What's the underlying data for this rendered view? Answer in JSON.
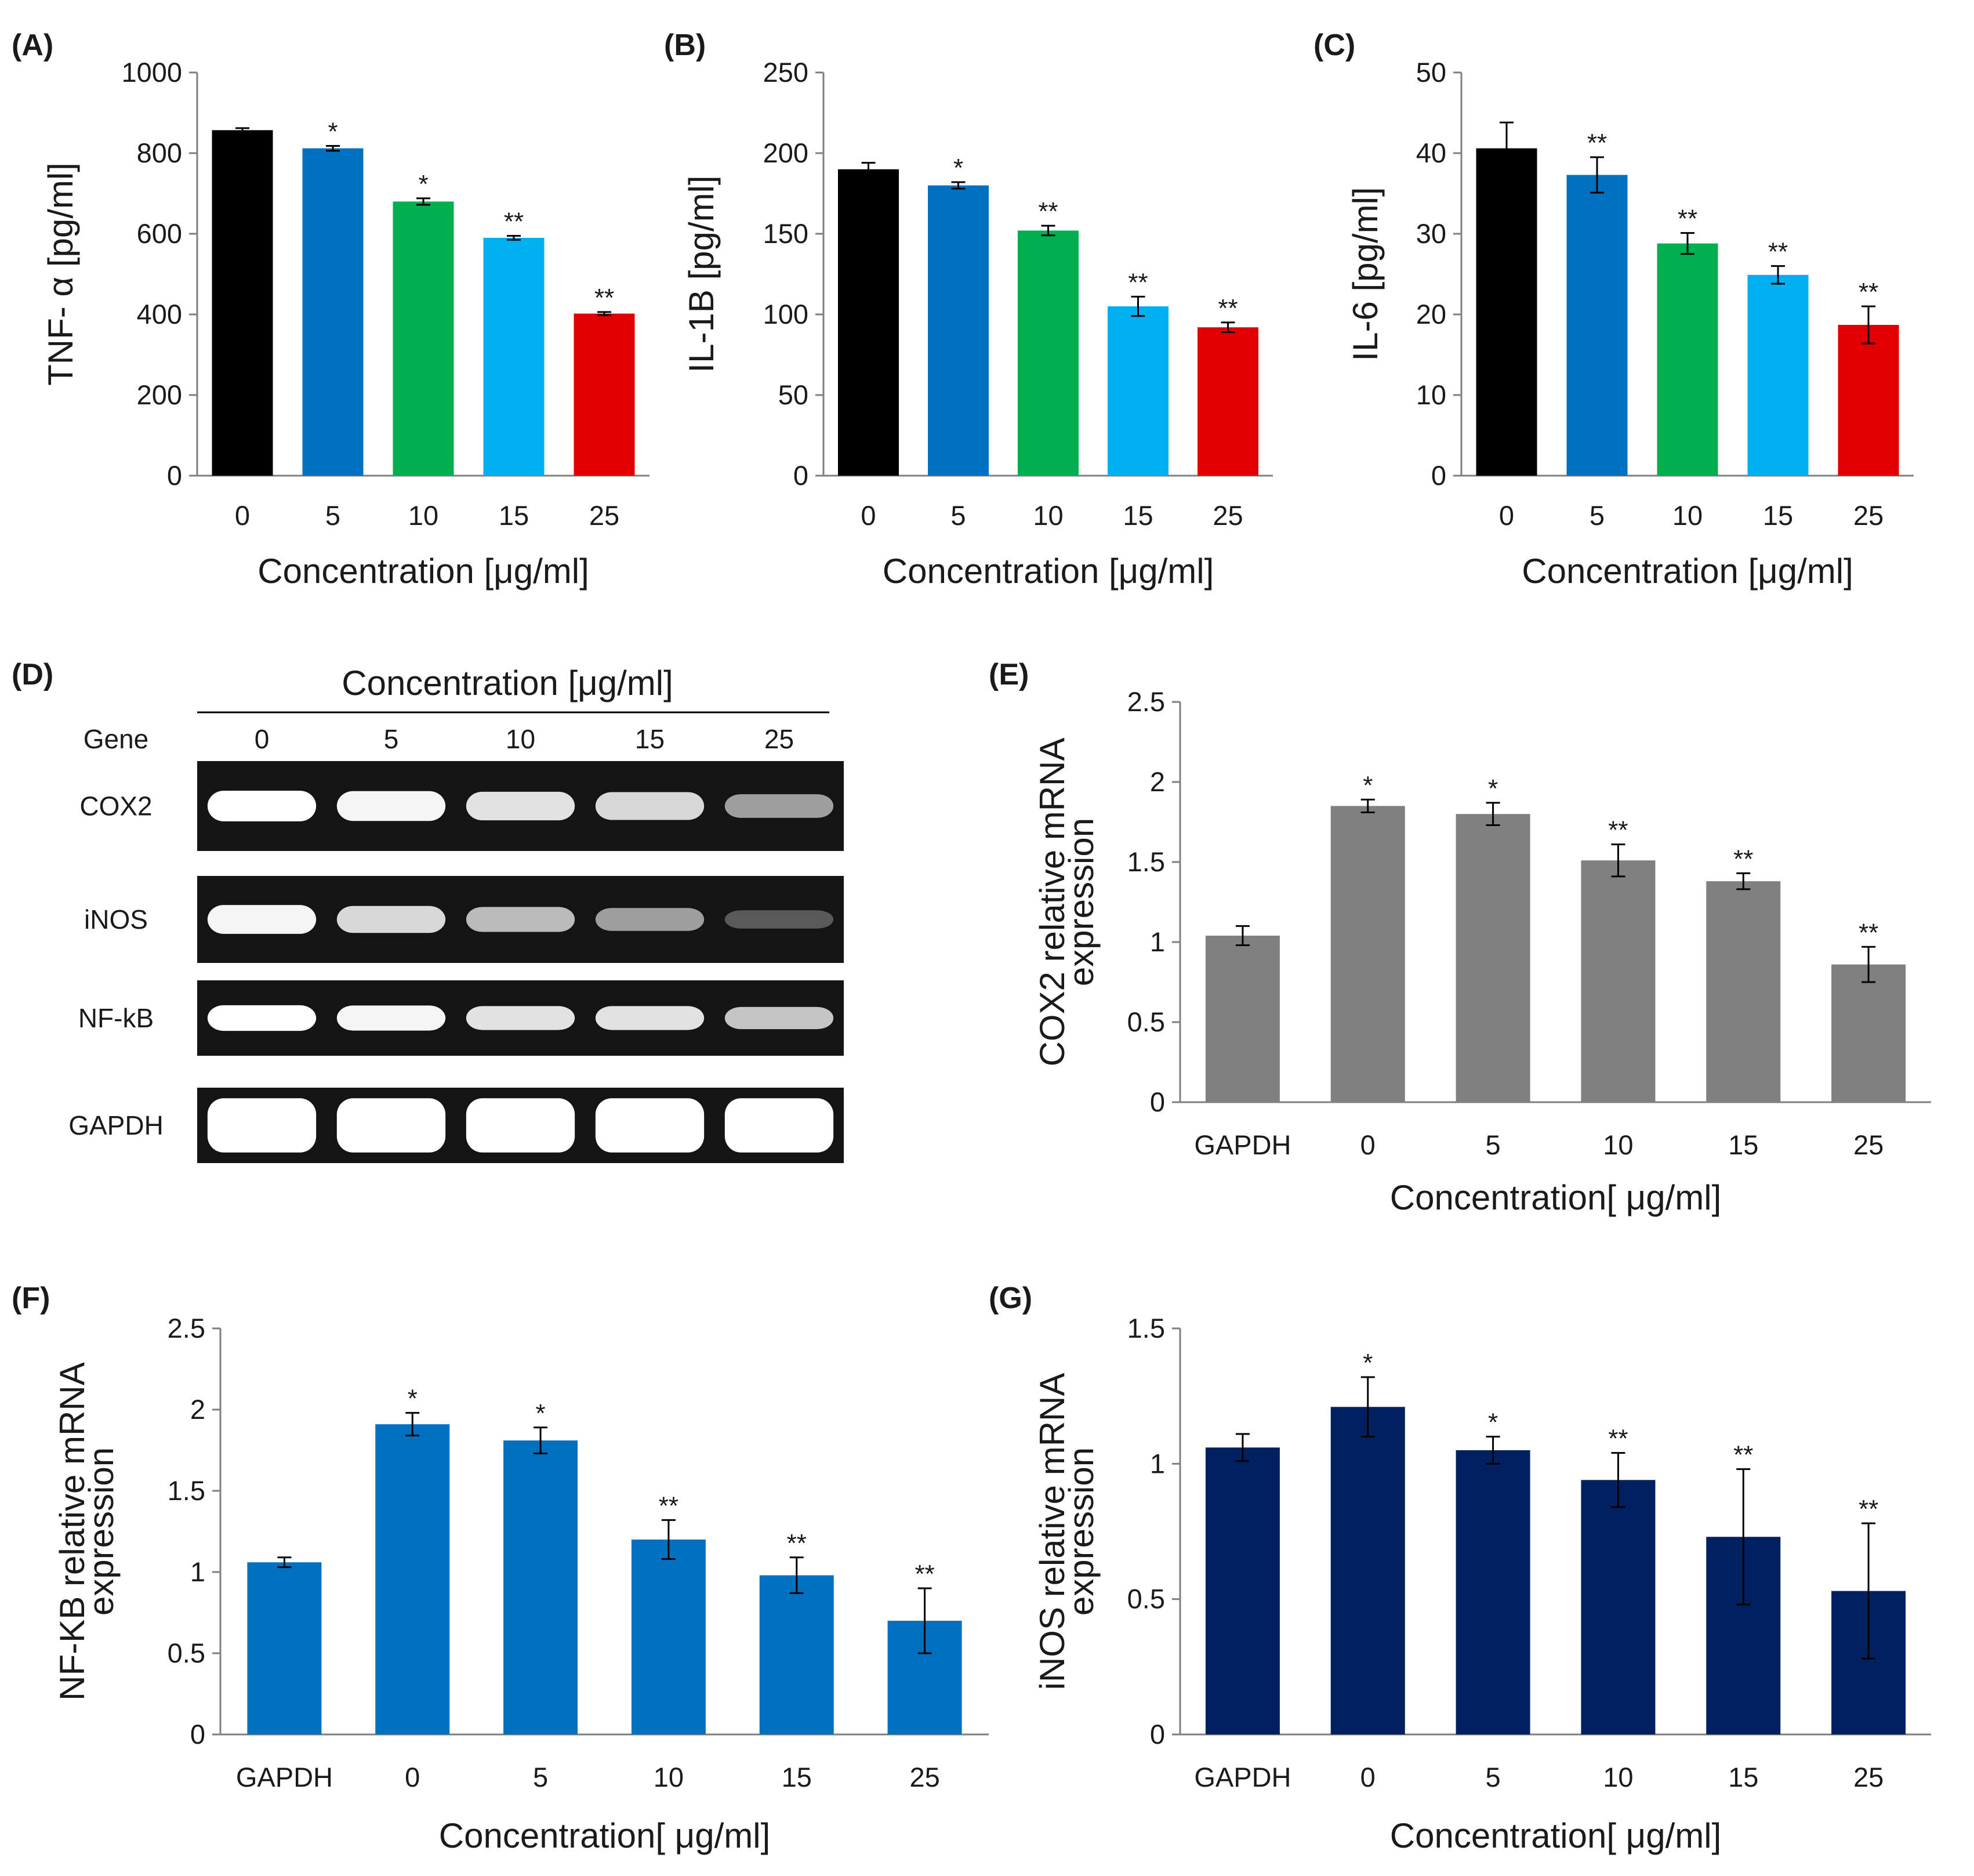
{
  "chart_data": [
    {
      "panel": "(A)",
      "type": "bar",
      "ylabel": "TNF- α [pg/ml]",
      "xlabel": "Concentration  [μg/ml]",
      "ylim": [
        0,
        1000
      ],
      "yticks": [
        "0",
        "200",
        "400",
        "600",
        "800",
        "1000"
      ],
      "categories": [
        "0",
        "5",
        "10",
        "15",
        "25"
      ],
      "values": [
        857,
        812,
        680,
        590,
        402
      ],
      "errors": [
        5,
        6,
        8,
        5,
        4
      ],
      "significance": [
        "",
        "*",
        "*",
        "**",
        "**"
      ],
      "colors": [
        "#000000",
        "#0070c0",
        "#00b050",
        "#00b0f0",
        "#e00000"
      ]
    },
    {
      "panel": "(B)",
      "type": "bar",
      "ylabel": "IL-1B [pg/ml]",
      "xlabel": "Concentration  [μg/ml]",
      "ylim": [
        0,
        250
      ],
      "yticks": [
        "0",
        "50",
        "100",
        "150",
        "200",
        "250"
      ],
      "categories": [
        "0",
        "5",
        "10",
        "15",
        "25"
      ],
      "values": [
        190,
        180,
        152,
        105,
        92
      ],
      "errors": [
        4,
        2,
        3,
        6,
        3
      ],
      "significance": [
        "",
        "*",
        "**",
        "**",
        "**"
      ],
      "colors": [
        "#000000",
        "#0070c0",
        "#00b050",
        "#00b0f0",
        "#e00000"
      ]
    },
    {
      "panel": "(C)",
      "type": "bar",
      "ylabel": "IL-6 [pg/ml]",
      "xlabel": "Concentration  [μg/ml]",
      "ylim": [
        0,
        50
      ],
      "yticks": [
        "0",
        "10",
        "20",
        "30",
        "40",
        "50"
      ],
      "categories": [
        "0",
        "5",
        "10",
        "15",
        "25"
      ],
      "values": [
        40.6,
        37.3,
        28.8,
        24.9,
        18.7
      ],
      "errors": [
        3.2,
        2.2,
        1.3,
        1.1,
        2.3
      ],
      "significance": [
        "",
        "**",
        "**",
        "**",
        "**"
      ],
      "colors": [
        "#000000",
        "#0070c0",
        "#00b050",
        "#00b0f0",
        "#e00000"
      ]
    },
    {
      "panel": "(E)",
      "type": "bar",
      "ylabel_lines": [
        "COX2 relative mRNA",
        "expression"
      ],
      "xlabel": "Concentration[  μg/ml]",
      "ylim": [
        0,
        2.5
      ],
      "yticks": [
        "0",
        "0.5",
        "1",
        "1.5",
        "2",
        "2.5"
      ],
      "categories": [
        "GAPDH",
        "0",
        "5",
        "10",
        "15",
        "25"
      ],
      "values": [
        1.04,
        1.85,
        1.8,
        1.51,
        1.38,
        0.86
      ],
      "errors": [
        0.06,
        0.04,
        0.07,
        0.1,
        0.05,
        0.11
      ],
      "significance": [
        "",
        "*",
        "*",
        "**",
        "**",
        "**"
      ],
      "colors": [
        "#808080",
        "#808080",
        "#808080",
        "#808080",
        "#808080",
        "#808080"
      ]
    },
    {
      "panel": "(F)",
      "type": "bar",
      "ylabel_lines": [
        "NF-KB relative mRNA",
        "expression"
      ],
      "xlabel": "Concentration[  μg/ml]",
      "ylim": [
        0,
        2.5
      ],
      "yticks": [
        "0",
        "0.5",
        "1",
        "1.5",
        "2",
        "2.5"
      ],
      "categories": [
        "GAPDH",
        "0",
        "5",
        "10",
        "15",
        "25"
      ],
      "values": [
        1.06,
        1.91,
        1.81,
        1.2,
        0.98,
        0.7
      ],
      "errors": [
        0.03,
        0.07,
        0.08,
        0.12,
        0.11,
        0.2
      ],
      "significance": [
        "",
        "*",
        "*",
        "**",
        "**",
        "**"
      ],
      "colors": [
        "#0070c0",
        "#0070c0",
        "#0070c0",
        "#0070c0",
        "#0070c0",
        "#0070c0"
      ]
    },
    {
      "panel": "(G)",
      "type": "bar",
      "ylabel_lines": [
        "iNOS relative mRNA",
        "expression"
      ],
      "xlabel": "Concentration[  μg/ml]",
      "ylim": [
        0,
        1.5
      ],
      "yticks": [
        "0",
        "0.5",
        "1",
        "1.5"
      ],
      "categories": [
        "GAPDH",
        "0",
        "5",
        "10",
        "15",
        "25"
      ],
      "values": [
        1.06,
        1.21,
        1.05,
        0.94,
        0.73,
        0.53
      ],
      "errors": [
        0.05,
        0.11,
        0.05,
        0.1,
        0.25,
        0.25
      ],
      "significance": [
        "",
        "*",
        "*",
        "**",
        "**",
        "**"
      ],
      "colors": [
        "#002060",
        "#002060",
        "#002060",
        "#002060",
        "#002060",
        "#002060"
      ]
    }
  ],
  "gel": {
    "panel": "(D)",
    "header": "Concentration  [μg/ml]",
    "gene_header": "Gene",
    "lanes": [
      "0",
      "5",
      "10",
      "15",
      "25"
    ],
    "genes": [
      {
        "name": "COX2",
        "band_intensity": [
          1.0,
          0.95,
          0.85,
          0.8,
          0.5
        ]
      },
      {
        "name": "iNOS",
        "band_intensity": [
          0.95,
          0.8,
          0.65,
          0.5,
          0.15
        ]
      },
      {
        "name": "NF-kB",
        "band_intensity": [
          1.0,
          0.95,
          0.85,
          0.85,
          0.7
        ]
      },
      {
        "name": "GAPDH",
        "band_intensity": [
          1.0,
          1.0,
          1.0,
          1.0,
          1.0
        ]
      }
    ]
  }
}
